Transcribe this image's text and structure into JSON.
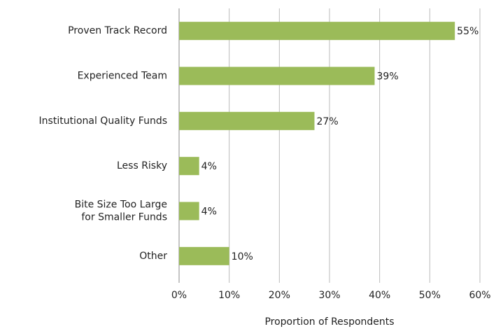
{
  "chart_data": {
    "type": "barh",
    "categories": [
      "Proven Track Record",
      "Experienced Team",
      "Institutional Quality Funds",
      "Less Risky",
      "Bite Size Too Large\nfor Smaller Funds",
      "Other"
    ],
    "values": [
      55,
      39,
      27,
      4,
      4,
      10
    ],
    "value_labels": [
      "55%",
      "39%",
      "27%",
      "4%",
      "4%",
      "10%"
    ],
    "color": "#9bbb59",
    "xlabel": "Proportion of Respondents",
    "xlim": [
      0,
      60
    ],
    "xticks": [
      {
        "value": 0,
        "label": "0%"
      },
      {
        "value": 10,
        "label": "10%"
      },
      {
        "value": 20,
        "label": "20%"
      },
      {
        "value": 30,
        "label": "30%"
      },
      {
        "value": 40,
        "label": "40%"
      },
      {
        "value": 50,
        "label": "50%"
      },
      {
        "value": 60,
        "label": "60%"
      }
    ],
    "grid": true
  }
}
